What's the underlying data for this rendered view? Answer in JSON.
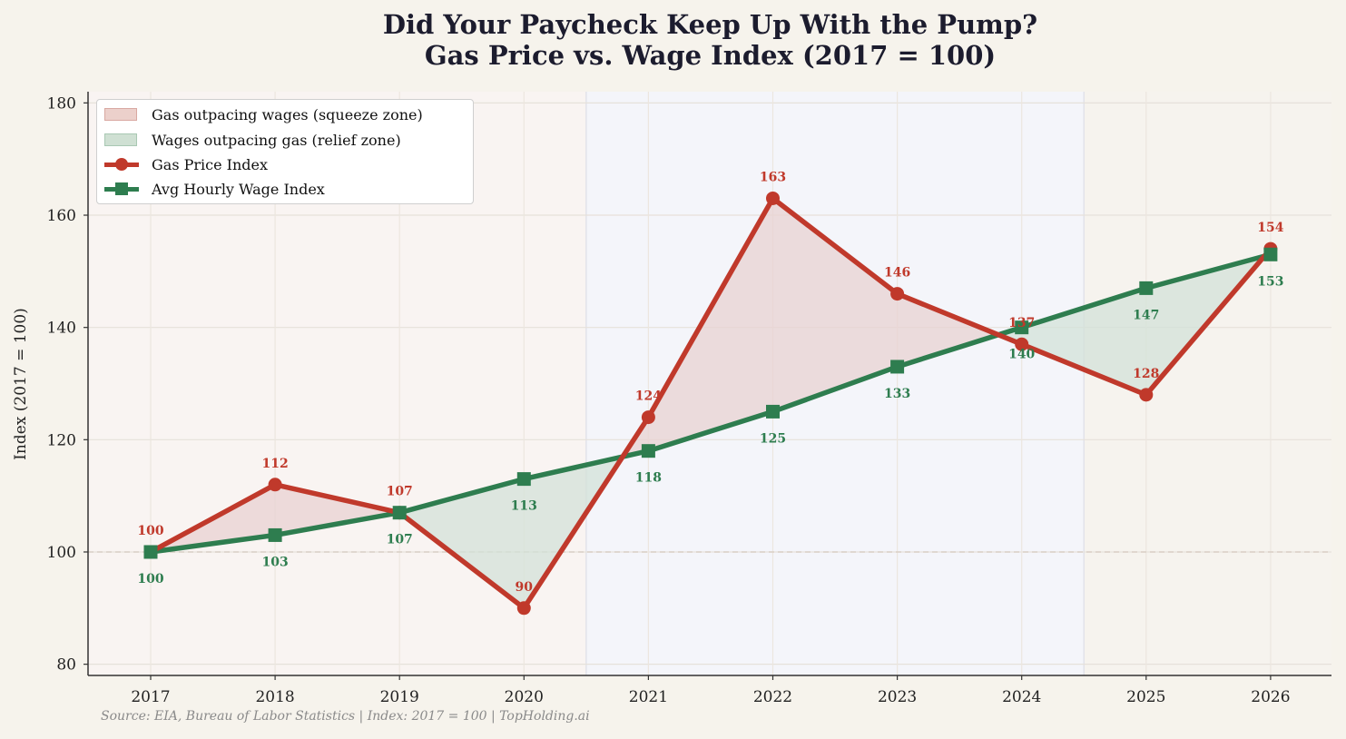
{
  "title_line1": "Did Your Paycheck Keep Up With the Pump?",
  "title_line2": "Gas Price vs. Wage Index (2017 = 100)",
  "source": "Source: EIA, Bureau of Labor Statistics  |  Index: 2017 = 100  |  TopHolding.ai",
  "legend": {
    "squeeze": "Gas outpacing wages (squeeze zone)",
    "relief": "Wages outpacing gas (relief zone)",
    "gas": "Gas Price Index",
    "wage": "Avg Hourly Wage Index"
  },
  "colors": {
    "gas": "#c0392b",
    "wage": "#2e7d4f",
    "squeeze_fill": "#e8d2d2",
    "relief_fill": "#d3e2d8",
    "bg": "#f6f3ec"
  },
  "chart_data": {
    "type": "line",
    "x": [
      "2017",
      "2018",
      "2019",
      "2020",
      "2021",
      "2022",
      "2023",
      "2024",
      "2025",
      "2026"
    ],
    "series": [
      {
        "name": "Gas Price Index",
        "values": [
          100,
          112,
          107,
          90,
          124,
          163,
          146,
          137,
          128,
          154
        ]
      },
      {
        "name": "Avg Hourly Wage Index",
        "values": [
          100,
          103,
          107,
          113,
          118,
          125,
          133,
          140,
          147,
          153
        ]
      }
    ],
    "ylabel": "Index (2017 = 100)",
    "ylim": [
      78,
      182
    ],
    "yticks": [
      80,
      100,
      120,
      140,
      160,
      180
    ],
    "reference_line": 100,
    "background_bands": [
      {
        "from": "2016.5",
        "to": "2020.5",
        "tint": "pink"
      },
      {
        "from": "2020.5",
        "to": "2024.5",
        "tint": "blue"
      },
      {
        "from": "2024.5",
        "to": "2026.5",
        "tint": "neutral"
      }
    ],
    "grid": true,
    "legend_position": "top-left"
  }
}
